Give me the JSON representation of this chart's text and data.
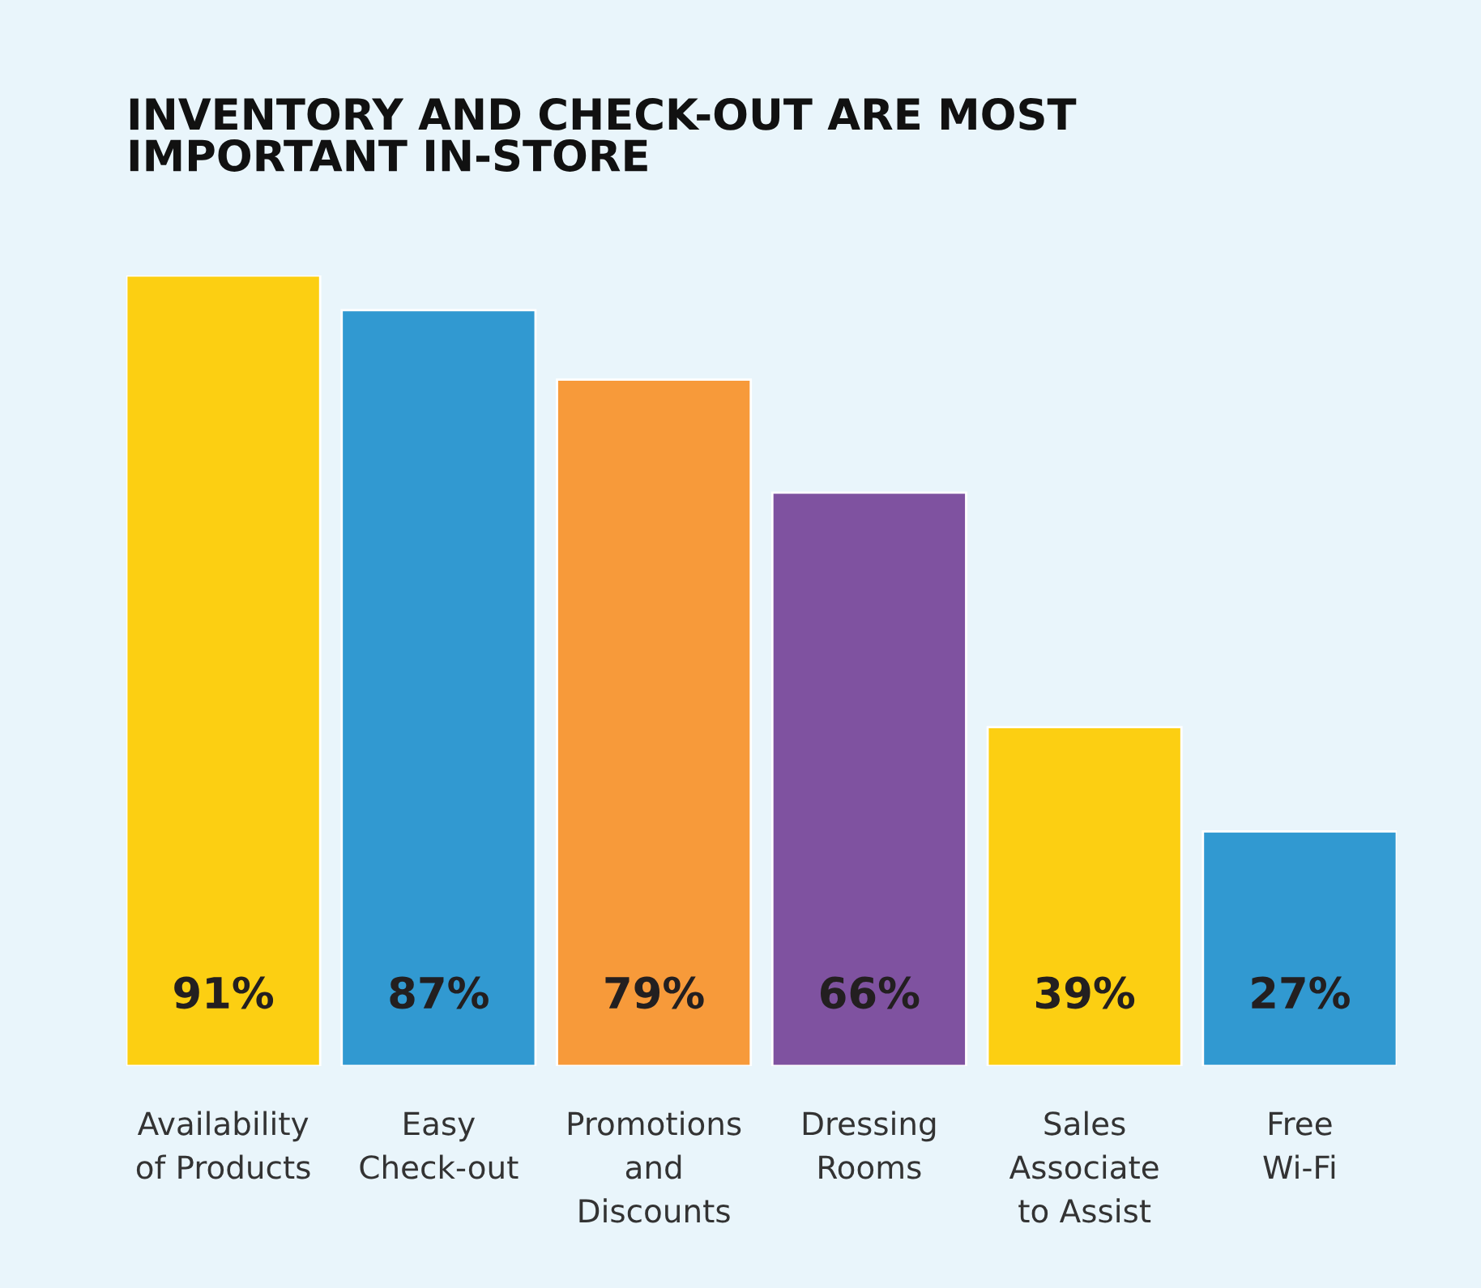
{
  "chart_data": {
    "type": "bar",
    "title": "INVENTORY AND CHECK-OUT ARE MOST\nIMPORTANT IN-STORE",
    "categories": [
      "Availability\nof Products",
      "Easy\nCheck-out",
      "Promotions\nand\nDiscounts",
      "Dressing\nRooms",
      "Sales\nAssociate\nto Assist",
      "Free\nWi-Fi"
    ],
    "values": [
      91,
      87,
      79,
      66,
      39,
      27
    ],
    "colors": [
      "#fccf12",
      "#3199d1",
      "#f79a3a",
      "#7f52a0",
      "#fccf12",
      "#3199d1"
    ],
    "value_labels": [
      "91%",
      "87%",
      "79%",
      "66%",
      "39%",
      "27%"
    ],
    "tick_labels": "x",
    "grid": false,
    "legend": false
  }
}
